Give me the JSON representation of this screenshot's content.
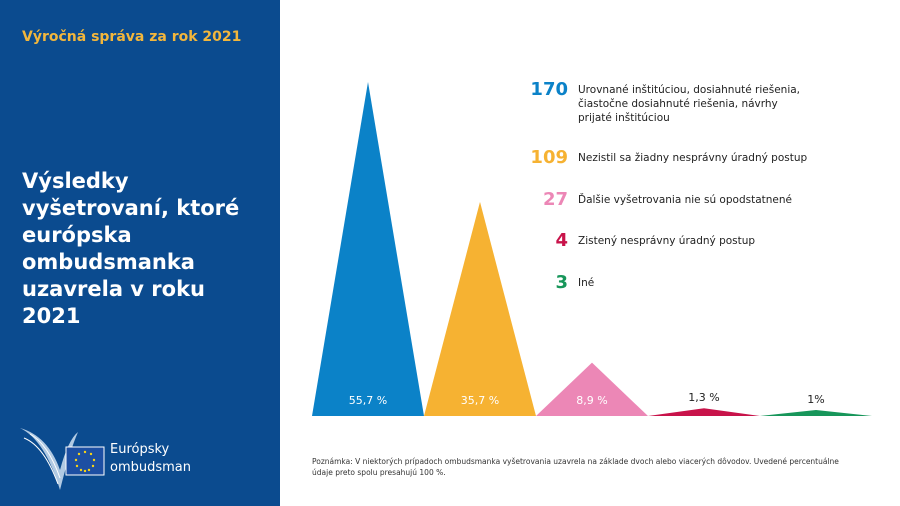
{
  "sidebar": {
    "report": "Výročná správa za rok 2021",
    "logo": [
      "Európsky",
      "ombudsman"
    ]
  },
  "chart_data": {
    "type": "triangle",
    "title": "Výsledky vyšetrovaní, ktoré európska ombudsmanka uzavrela v roku 2021",
    "categories": [
      "Urovnané inštitúciou, dosiahnuté riešenia, čiastočne dosiahnuté riešenia, návrhy prijaté inštitúciou",
      "Nezistil sa žiadny nesprávny úradný postup",
      "Ďalšie vyšetrovania nie sú opodstatnené",
      "Zistený nesprávny úradný postup",
      "Iné"
    ],
    "counts": [
      170,
      109,
      27,
      4,
      3
    ],
    "values": [
      55.7,
      35.7,
      8.9,
      1.3,
      1
    ],
    "value_labels": [
      "55,7 %",
      "35,7 %",
      "8,9 %",
      "1,3 %",
      "1%"
    ],
    "colors": [
      "#0b82c8",
      "#f6b232",
      "#ec87b6",
      "#c8134a",
      "#17965a"
    ],
    "note": "Poznámka: V niektorých prípadoch ombudsmanka vyšetrovania uzavrela na základe dvoch alebo viacerých dôvodov. Uvedené percentuálne údaje preto spolu presahujú 100 %."
  }
}
